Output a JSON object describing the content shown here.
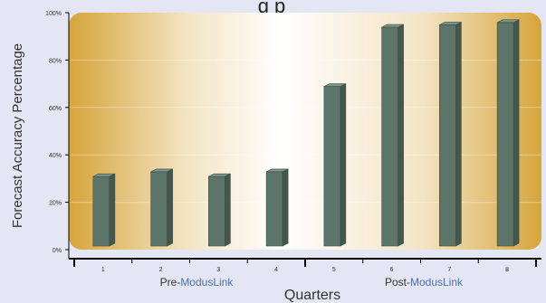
{
  "chart_data": {
    "type": "bar",
    "categories": [
      "1",
      "2",
      "3",
      "4",
      "5",
      "6",
      "7",
      "8"
    ],
    "values": [
      32,
      34,
      32,
      34,
      70,
      95,
      96,
      97
    ],
    "ylabel": "Forecast Accuracy Percentage",
    "xlabel": "Quarters",
    "ylim": [
      0,
      100
    ],
    "yticks": [
      "0%",
      "20%",
      "40%",
      "60%",
      "80%",
      "100%"
    ],
    "groups": [
      {
        "prefix": "Pre-",
        "highlight": "ModusLink",
        "categories": [
          "1",
          "2",
          "3",
          "4"
        ]
      },
      {
        "prefix": "Post-",
        "highlight": "ModusLink",
        "categories": [
          "5",
          "6",
          "7",
          "8"
        ]
      }
    ],
    "title_fragment": "g p",
    "colors": {
      "background": "#e5e6f3",
      "plot_edge": "#d6a53c",
      "plot_center": "#ffffff",
      "bar_front": "#5d7468",
      "bar_side": "#44574c",
      "bar_top": "#7d9486",
      "axis": "#000000",
      "highlight_text": "#4a6fb0",
      "text": "#333333"
    }
  }
}
